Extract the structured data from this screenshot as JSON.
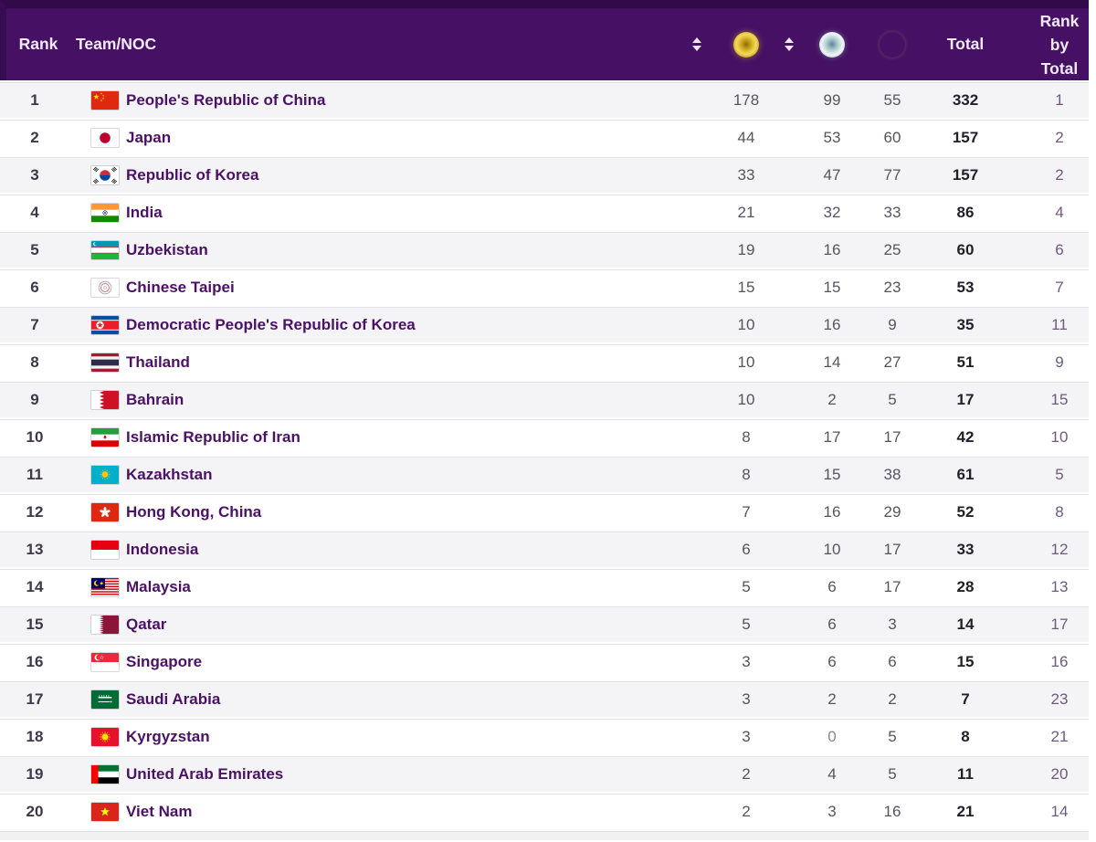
{
  "table": {
    "headers": {
      "rank": "Rank",
      "team": "Team/NOC",
      "total": "Total",
      "rank_by_total": "Rank by Total"
    },
    "icons": {
      "sort": "sort-arrows",
      "gold": "gold-medal",
      "silver": "silver-medal",
      "bronze": "bronze-medal"
    },
    "colors": {
      "header_bg": "#461164",
      "header_top_strip": "#310a49",
      "header_text": "#f2eafb",
      "row_alt_bg": "#f4f4f6",
      "team_text": "#4a1165",
      "total_text": "#211f2a",
      "rank_by_total_text": "#6d5b7e",
      "gold_medal": "#e8c935",
      "silver_medal": "#cdddE2",
      "bronze_medal": "#bd9a80"
    },
    "rows": [
      {
        "rank": "1",
        "flag": "cn",
        "team": "People's Republic of China",
        "gold": "178",
        "silver": "99",
        "bronze": "55",
        "total": "332",
        "rank_by_total": "1"
      },
      {
        "rank": "2",
        "flag": "jp",
        "team": "Japan",
        "gold": "44",
        "silver": "53",
        "bronze": "60",
        "total": "157",
        "rank_by_total": "2"
      },
      {
        "rank": "3",
        "flag": "kr",
        "team": "Republic of Korea",
        "gold": "33",
        "silver": "47",
        "bronze": "77",
        "total": "157",
        "rank_by_total": "2"
      },
      {
        "rank": "4",
        "flag": "in",
        "team": "India",
        "gold": "21",
        "silver": "32",
        "bronze": "33",
        "total": "86",
        "rank_by_total": "4"
      },
      {
        "rank": "5",
        "flag": "uz",
        "team": "Uzbekistan",
        "gold": "19",
        "silver": "16",
        "bronze": "25",
        "total": "60",
        "rank_by_total": "6"
      },
      {
        "rank": "6",
        "flag": "tw",
        "team": "Chinese Taipei",
        "gold": "15",
        "silver": "15",
        "bronze": "23",
        "total": "53",
        "rank_by_total": "7"
      },
      {
        "rank": "7",
        "flag": "kp",
        "team": "Democratic People's Republic of Korea",
        "gold": "10",
        "silver": "16",
        "bronze": "9",
        "total": "35",
        "rank_by_total": "11"
      },
      {
        "rank": "8",
        "flag": "th",
        "team": "Thailand",
        "gold": "10",
        "silver": "14",
        "bronze": "27",
        "total": "51",
        "rank_by_total": "9"
      },
      {
        "rank": "9",
        "flag": "bh",
        "team": "Bahrain",
        "gold": "10",
        "silver": "2",
        "bronze": "5",
        "total": "17",
        "rank_by_total": "15"
      },
      {
        "rank": "10",
        "flag": "ir",
        "team": "Islamic Republic of Iran",
        "gold": "8",
        "silver": "17",
        "bronze": "17",
        "total": "42",
        "rank_by_total": "10"
      },
      {
        "rank": "11",
        "flag": "kz",
        "team": "Kazakhstan",
        "gold": "8",
        "silver": "15",
        "bronze": "38",
        "total": "61",
        "rank_by_total": "5"
      },
      {
        "rank": "12",
        "flag": "hk",
        "team": "Hong Kong, China",
        "gold": "7",
        "silver": "16",
        "bronze": "29",
        "total": "52",
        "rank_by_total": "8"
      },
      {
        "rank": "13",
        "flag": "id",
        "team": "Indonesia",
        "gold": "6",
        "silver": "10",
        "bronze": "17",
        "total": "33",
        "rank_by_total": "12"
      },
      {
        "rank": "14",
        "flag": "my",
        "team": "Malaysia",
        "gold": "5",
        "silver": "6",
        "bronze": "17",
        "total": "28",
        "rank_by_total": "13"
      },
      {
        "rank": "15",
        "flag": "qa",
        "team": "Qatar",
        "gold": "5",
        "silver": "6",
        "bronze": "3",
        "total": "14",
        "rank_by_total": "17"
      },
      {
        "rank": "16",
        "flag": "sg",
        "team": "Singapore",
        "gold": "3",
        "silver": "6",
        "bronze": "6",
        "total": "15",
        "rank_by_total": "16"
      },
      {
        "rank": "17",
        "flag": "sa",
        "team": "Saudi Arabia",
        "gold": "3",
        "silver": "2",
        "bronze": "2",
        "total": "7",
        "rank_by_total": "23"
      },
      {
        "rank": "18",
        "flag": "kg",
        "team": "Kyrgyzstan",
        "gold": "3",
        "silver": "0",
        "bronze": "5",
        "total": "8",
        "rank_by_total": "21"
      },
      {
        "rank": "19",
        "flag": "ae",
        "team": "United Arab Emirates",
        "gold": "2",
        "silver": "4",
        "bronze": "5",
        "total": "11",
        "rank_by_total": "20"
      },
      {
        "rank": "20",
        "flag": "vn",
        "team": "Viet Nam",
        "gold": "2",
        "silver": "3",
        "bronze": "16",
        "total": "21",
        "rank_by_total": "14"
      }
    ]
  }
}
